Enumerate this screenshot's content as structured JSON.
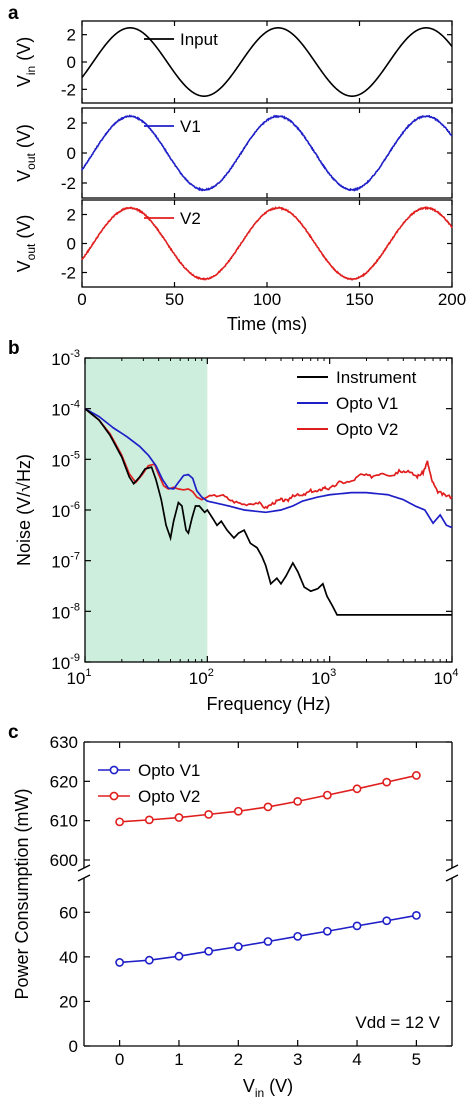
{
  "chart_data": [
    {
      "panel": "a",
      "type": "line",
      "x": {
        "label": "Time (ms)",
        "lim": [
          0,
          200
        ],
        "ticks": [
          0,
          50,
          100,
          150,
          200
        ]
      },
      "subplots": [
        {
          "ylabel": {
            "main": "V",
            "sub": "in",
            "tail": " (V)"
          },
          "ylim": [
            -3,
            3
          ],
          "yticks": [
            2,
            0,
            -2
          ],
          "series": [
            {
              "name": "Input",
              "color": "#000000",
              "amplitude": 2.5,
              "period_ms": 80,
              "phase_ms": -6,
              "noise": 0.0
            }
          ]
        },
        {
          "ylabel": {
            "main": "V",
            "sub": "out",
            "tail": " (V)"
          },
          "ylim": [
            -3,
            3
          ],
          "yticks": [
            2,
            0,
            -2
          ],
          "series": [
            {
              "name": "V1",
              "color": "#1f1fc8",
              "amplitude": 2.45,
              "period_ms": 80,
              "phase_ms": -6,
              "noise": 0.04
            }
          ]
        },
        {
          "ylabel": {
            "main": "V",
            "sub": "out",
            "tail": " (V)"
          },
          "ylim": [
            -3,
            3
          ],
          "yticks": [
            2,
            0,
            -2
          ],
          "series": [
            {
              "name": "V2",
              "color": "#e01e1e",
              "amplitude": 2.45,
              "period_ms": 80,
              "phase_ms": -6,
              "noise": 0.04
            }
          ]
        }
      ]
    },
    {
      "panel": "b",
      "type": "line",
      "scale": "log-log",
      "xlabel": "Frequency (Hz)",
      "ylabel": "Noise (V/√Hz)",
      "xlim": [
        10,
        10000
      ],
      "ylim": [
        1e-09,
        0.001
      ],
      "xticks": [
        {
          "base": "10",
          "exp": "1"
        },
        {
          "base": "10",
          "exp": "2"
        },
        {
          "base": "10",
          "exp": "3"
        },
        {
          "base": "10",
          "exp": "4"
        }
      ],
      "yticks": [
        {
          "base": "10",
          "exp": "-3"
        },
        {
          "base": "10",
          "exp": "-4"
        },
        {
          "base": "10",
          "exp": "-5"
        },
        {
          "base": "10",
          "exp": "-6"
        },
        {
          "base": "10",
          "exp": "-7"
        },
        {
          "base": "10",
          "exp": "-8"
        },
        {
          "base": "10",
          "exp": "-9"
        }
      ],
      "shaded_region": {
        "x": [
          10,
          100
        ],
        "color": "#cdeedd"
      },
      "series": [
        {
          "name": "Instrument",
          "color": "#000000",
          "points": [
            [
              10,
              0.0001
            ],
            [
              13,
              6e-05
            ],
            [
              16,
              3e-05
            ],
            [
              20,
              1.1e-05
            ],
            [
              23,
              4.5e-06
            ],
            [
              25,
              3.3e-06
            ],
            [
              28,
              4.5e-06
            ],
            [
              31,
              6.5e-06
            ],
            [
              35,
              7e-06
            ],
            [
              38,
              4e-06
            ],
            [
              42,
              1.6e-06
            ],
            [
              46,
              5e-07
            ],
            [
              50,
              2.8e-07
            ],
            [
              53,
              6e-07
            ],
            [
              58,
              1.4e-06
            ],
            [
              62,
              1.2e-06
            ],
            [
              67,
              4e-07
            ],
            [
              70,
              3.5e-07
            ],
            [
              75,
              7e-07
            ],
            [
              80,
              1.2e-06
            ],
            [
              86,
              1.2e-06
            ],
            [
              95,
              9e-07
            ],
            [
              100,
              1e-06
            ],
            [
              110,
              7e-07
            ],
            [
              120,
              5e-07
            ],
            [
              130,
              6e-07
            ],
            [
              145,
              4e-07
            ],
            [
              165,
              2.8e-07
            ],
            [
              180,
              3.5e-07
            ],
            [
              200,
              4e-07
            ],
            [
              225,
              2.2e-07
            ],
            [
              255,
              1.8e-07
            ],
            [
              280,
              1.2e-07
            ],
            [
              300,
              8e-08
            ],
            [
              330,
              3.5e-08
            ],
            [
              370,
              4.5e-08
            ],
            [
              400,
              3.5e-08
            ],
            [
              440,
              5e-08
            ],
            [
              500,
              9e-08
            ],
            [
              550,
              6e-08
            ],
            [
              620,
              3e-08
            ],
            [
              700,
              2.5e-08
            ],
            [
              800,
              2.8e-08
            ],
            [
              880,
              3.5e-08
            ],
            [
              950,
              2e-08
            ],
            [
              1050,
              1.3e-08
            ],
            [
              1150,
              8.5e-09
            ],
            [
              2000,
              8.5e-09
            ],
            [
              5000,
              8.5e-09
            ],
            [
              10000,
              8.5e-09
            ]
          ]
        },
        {
          "name": "Opto V1",
          "color": "#1f1fc8",
          "points": [
            [
              10,
              0.0001
            ],
            [
              13,
              7e-05
            ],
            [
              17,
              4.2e-05
            ],
            [
              22,
              2.8e-05
            ],
            [
              28,
              1.8e-05
            ],
            [
              33,
              1.2e-05
            ],
            [
              38,
              7.5e-06
            ],
            [
              43,
              4e-06
            ],
            [
              48,
              2.7e-06
            ],
            [
              53,
              2.6e-06
            ],
            [
              58,
              3.5e-06
            ],
            [
              64,
              4.8e-06
            ],
            [
              70,
              5e-06
            ],
            [
              76,
              4.2e-06
            ],
            [
              82,
              2.4e-06
            ],
            [
              90,
              1.8e-06
            ],
            [
              100,
              1.5e-06
            ],
            [
              150,
              1.2e-06
            ],
            [
              200,
              1e-06
            ],
            [
              300,
              9e-07
            ],
            [
              400,
              1e-06
            ],
            [
              500,
              1.2e-06
            ],
            [
              600,
              1.5e-06
            ],
            [
              800,
              1.8e-06
            ],
            [
              1000,
              2e-06
            ],
            [
              1500,
              2.2e-06
            ],
            [
              2000,
              2.2e-06
            ],
            [
              3000,
              2e-06
            ],
            [
              4000,
              1.6e-06
            ],
            [
              5000,
              1.2e-06
            ],
            [
              6000,
              1e-06
            ],
            [
              7000,
              5.5e-07
            ],
            [
              8000,
              8e-07
            ],
            [
              9000,
              5e-07
            ],
            [
              10000,
              4.5e-07
            ]
          ]
        },
        {
          "name": "Opto V2",
          "color": "#e01e1e",
          "points": [
            [
              10,
              0.0001
            ],
            [
              13,
              6e-05
            ],
            [
              16,
              3.2e-05
            ],
            [
              20,
              1.2e-05
            ],
            [
              23,
              5.2e-06
            ],
            [
              26,
              3.5e-06
            ],
            [
              29,
              4.8e-06
            ],
            [
              33,
              7.5e-06
            ],
            [
              37,
              8e-06
            ],
            [
              40,
              5e-06
            ],
            [
              44,
              3e-06
            ],
            [
              48,
              2.6e-06
            ],
            [
              53,
              2.8e-06
            ],
            [
              58,
              2.6e-06
            ],
            [
              64,
              2.5e-06
            ],
            [
              70,
              2.6e-06
            ],
            [
              76,
              2.3e-06
            ],
            [
              82,
              1.8e-06
            ],
            [
              90,
              1.6e-06
            ],
            [
              100,
              1.8e-06
            ],
            [
              130,
              2e-06
            ],
            [
              160,
              1.5e-06
            ],
            [
              200,
              1.3e-06
            ],
            [
              260,
              1.4e-06
            ],
            [
              300,
              1.1e-06
            ],
            [
              350,
              1.4e-06
            ],
            [
              400,
              1.6e-06
            ],
            [
              450,
              1.5e-06
            ],
            [
              500,
              2e-06
            ],
            [
              600,
              1.9e-06
            ],
            [
              700,
              2.4e-06
            ],
            [
              800,
              2.3e-06
            ],
            [
              900,
              2.8e-06
            ],
            [
              1000,
              2.6e-06
            ],
            [
              1200,
              3.5e-06
            ],
            [
              1500,
              3.6e-06
            ],
            [
              1800,
              5e-06
            ],
            [
              2200,
              4.6e-06
            ],
            [
              2700,
              5.5e-06
            ],
            [
              3200,
              4.8e-06
            ],
            [
              3800,
              6e-06
            ],
            [
              4500,
              5.5e-06
            ],
            [
              5200,
              4.6e-06
            ],
            [
              5800,
              5.5e-06
            ],
            [
              6300,
              9e-06
            ],
            [
              6800,
              4e-06
            ],
            [
              7500,
              2.4e-06
            ],
            [
              8500,
              2e-06
            ],
            [
              10000,
              1.8e-06
            ]
          ]
        }
      ]
    },
    {
      "panel": "c",
      "type": "line",
      "xlabel": {
        "main": "V",
        "sub": "in",
        "tail": " (V)"
      },
      "ylabel": "Power Consumption (mW)",
      "xlim": [
        -0.6,
        5.6
      ],
      "xticks": [
        "0",
        "1",
        "2",
        "3",
        "4",
        "5"
      ],
      "broken_y_axis": {
        "upper_lim": [
          600,
          630
        ],
        "upper_ticks": [
          "600",
          "610",
          "620",
          "630"
        ],
        "lower_lim": [
          0,
          70
        ],
        "lower_ticks": [
          "0",
          "20",
          "40",
          "60"
        ]
      },
      "annotation": "Vdd = 12 V",
      "x_values": [
        0,
        0.5,
        1,
        1.5,
        2,
        2.5,
        3,
        3.5,
        4,
        4.5,
        5
      ],
      "series": [
        {
          "name": "Opto V1",
          "color": "#1f1fc8",
          "values": [
            37.5,
            38.5,
            40.3,
            42.5,
            44.6,
            46.9,
            49.2,
            51.5,
            53.9,
            56.2,
            58.6
          ]
        },
        {
          "name": "Opto V2",
          "color": "#e01e1e",
          "values": [
            609.7,
            610.2,
            610.8,
            611.6,
            612.4,
            613.5,
            614.9,
            616.5,
            618.1,
            619.8,
            621.5
          ]
        }
      ]
    }
  ]
}
